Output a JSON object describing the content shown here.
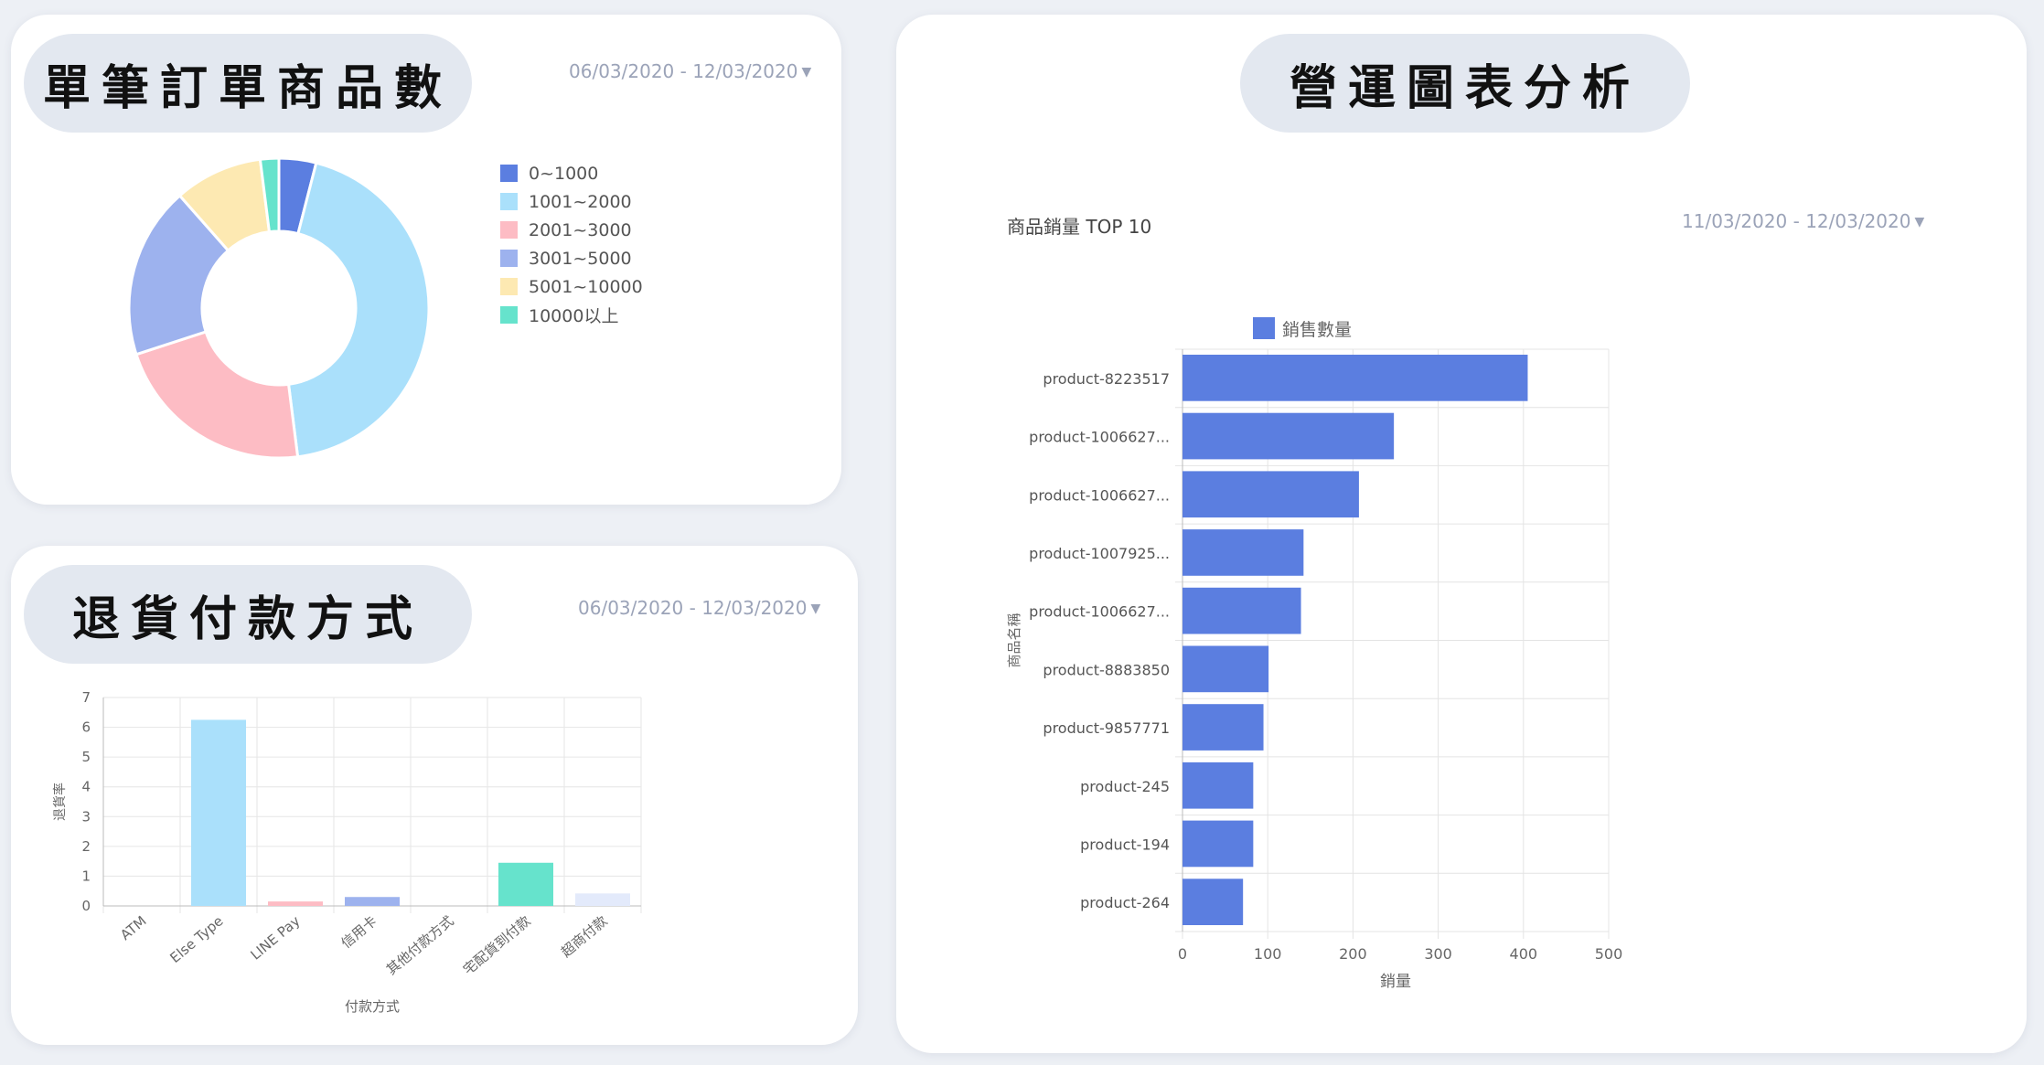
{
  "colors": {
    "bar_blue": "#5b7ee0",
    "pill_bg": "#e3e8f0",
    "date_text": "#9ba3b8",
    "grid": "#e4e4e4"
  },
  "items_card": {
    "title": "單筆訂單商品數",
    "date_range": "06/03/2020 - 12/03/2020",
    "dropdown_icon": "caret-down-icon"
  },
  "returns_card": {
    "title": "退貨付款方式",
    "date_range": "06/03/2020 - 12/03/2020",
    "dropdown_icon": "caret-down-icon"
  },
  "ops_card": {
    "title": "營運圖表分析",
    "chart_title": "商品銷量 TOP 10",
    "date_range": "11/03/2020 - 12/03/2020",
    "dropdown_icon": "caret-down-icon"
  },
  "chart_data": [
    {
      "type": "pie",
      "donut": true,
      "legend_position": "right",
      "slices": [
        {
          "label": "0~1000",
          "value": 4,
          "color": "#5b7ee0"
        },
        {
          "label": "1001~2000",
          "value": 44,
          "color": "#aae0fb"
        },
        {
          "label": "2001~3000",
          "value": 22,
          "color": "#fdbcc4"
        },
        {
          "label": "3001~5000",
          "value": 18.5,
          "color": "#9db2ee"
        },
        {
          "label": "5001~10000",
          "value": 9.5,
          "color": "#fde9b2"
        },
        {
          "label": "10000以上",
          "value": 2,
          "color": "#66e3cc"
        }
      ]
    },
    {
      "type": "bar",
      "categories": [
        "ATM",
        "Else Type",
        "LINE Pay",
        "信用卡",
        "其他付款方式",
        "宅配貨到付款",
        "超商付款"
      ],
      "values": [
        0,
        6.25,
        0.15,
        0.3,
        0,
        1.45,
        0.42
      ],
      "colors": [
        "#5b7ee0",
        "#aae0fb",
        "#fdbcc4",
        "#9db2ee",
        "#fde9b2",
        "#66e3cc",
        "#e3eafb"
      ],
      "xlabel": "付款方式",
      "ylabel": "退貨率",
      "ylim": [
        0,
        7
      ],
      "yticks": [
        "0",
        "1",
        "2",
        "3",
        "4",
        "5",
        "6",
        "7"
      ],
      "grid": true
    },
    {
      "type": "bar",
      "orientation": "horizontal",
      "categories": [
        "product-8223517",
        "product-1006627...",
        "product-1006627...",
        "product-1007925...",
        "product-1006627...",
        "product-8883850",
        "product-9857771",
        "product-245",
        "product-194",
        "product-264"
      ],
      "series": [
        {
          "name": "銷售數量",
          "values": [
            405,
            248,
            207,
            142,
            139,
            101,
            95,
            83,
            83,
            71
          ]
        }
      ],
      "xlabel": "銷量",
      "ylabel": "商品名稱",
      "xlim": [
        0,
        500
      ],
      "xticks": [
        "0",
        "100",
        "200",
        "300",
        "400",
        "500"
      ],
      "legend_position": "top",
      "grid": true
    }
  ]
}
